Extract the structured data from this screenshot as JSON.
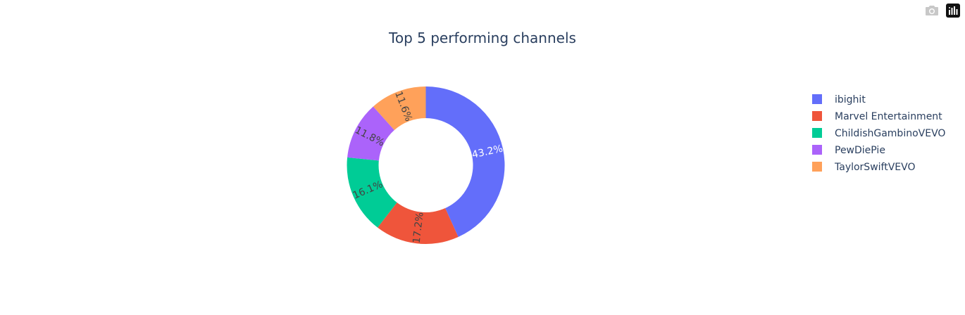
{
  "chart_data": {
    "type": "pie",
    "hole": true,
    "title": "Top 5 performing channels",
    "labels": [
      "ibighit",
      "Marvel Entertainment",
      "ChildishGambinoVEVO",
      "PewDiePie",
      "TaylorSwiftVEVO"
    ],
    "values": [
      43.2,
      17.2,
      16.1,
      11.8,
      11.6
    ],
    "value_labels": [
      "43.2%",
      "17.2%",
      "16.1%",
      "11.8%",
      "11.6%"
    ],
    "colors": [
      "#636efa",
      "#ef553b",
      "#00cc96",
      "#ab63fa",
      "#ffa15a"
    ],
    "label_colors": [
      "#ffffff",
      "#444444",
      "#444444",
      "#444444",
      "#444444"
    ],
    "legend_position": "right"
  },
  "modebar": {
    "icons": [
      "camera-icon",
      "plotly-logo-icon"
    ]
  }
}
